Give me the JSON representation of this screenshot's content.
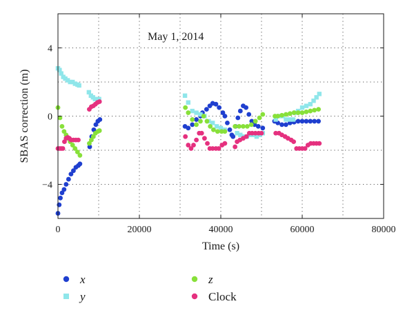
{
  "chart_data": {
    "type": "scatter",
    "title": "",
    "annotation": "May 1, 2014",
    "xlabel": "Time (s)",
    "ylabel": "SBAS correction (m)",
    "xlim": [
      0,
      80000
    ],
    "ylim": [
      -6,
      6
    ],
    "xticks": [
      0,
      20000,
      40000,
      60000,
      80000
    ],
    "yticks": [
      -4,
      0,
      4
    ],
    "grid": true,
    "legend_position": "bottom",
    "series": [
      {
        "name": "x",
        "color": "#1f3fcf",
        "marker": "circle",
        "points": [
          [
            0,
            -5.7
          ],
          [
            300,
            -5.2
          ],
          [
            600,
            -4.8
          ],
          [
            1000,
            -4.5
          ],
          [
            1500,
            -4.3
          ],
          [
            2000,
            -4.0
          ],
          [
            2600,
            -3.7
          ],
          [
            3200,
            -3.4
          ],
          [
            3800,
            -3.2
          ],
          [
            4400,
            -3.0
          ],
          [
            5000,
            -2.9
          ],
          [
            5400,
            -2.8
          ],
          [
            7800,
            -1.8
          ],
          [
            8300,
            -1.2
          ],
          [
            8800,
            -0.8
          ],
          [
            9300,
            -0.5
          ],
          [
            9800,
            -0.3
          ],
          [
            10300,
            -0.2
          ],
          [
            31200,
            -0.6
          ],
          [
            32000,
            -0.7
          ],
          [
            33000,
            -0.5
          ],
          [
            34000,
            -0.2
          ],
          [
            35000,
            0.0
          ],
          [
            35500,
            0.2
          ],
          [
            36500,
            0.4
          ],
          [
            37300,
            0.6
          ],
          [
            38000,
            0.75
          ],
          [
            38800,
            0.7
          ],
          [
            39600,
            0.5
          ],
          [
            40500,
            0.2
          ],
          [
            41000,
            0.0
          ],
          [
            41600,
            -0.4
          ],
          [
            42200,
            -0.8
          ],
          [
            42700,
            -1.1
          ],
          [
            43000,
            -1.2
          ],
          [
            43600,
            -0.6
          ],
          [
            44200,
            -0.1
          ],
          [
            44800,
            0.3
          ],
          [
            45500,
            0.6
          ],
          [
            46200,
            0.5
          ],
          [
            46900,
            0.1
          ],
          [
            47600,
            -0.3
          ],
          [
            48300,
            -0.5
          ],
          [
            49200,
            -0.6
          ],
          [
            50300,
            -0.7
          ],
          [
            53200,
            -0.3
          ],
          [
            54000,
            -0.4
          ],
          [
            55000,
            -0.5
          ],
          [
            56000,
            -0.5
          ],
          [
            57000,
            -0.4
          ],
          [
            58000,
            -0.35
          ],
          [
            59000,
            -0.3
          ],
          [
            60000,
            -0.3
          ],
          [
            61000,
            -0.3
          ],
          [
            62000,
            -0.3
          ],
          [
            63000,
            -0.3
          ],
          [
            64000,
            -0.3
          ]
        ]
      },
      {
        "name": "y",
        "color": "#8fe6ea",
        "marker": "square",
        "points": [
          [
            0,
            2.8
          ],
          [
            400,
            2.7
          ],
          [
            800,
            2.5
          ],
          [
            1300,
            2.3
          ],
          [
            1800,
            2.2
          ],
          [
            2400,
            2.1
          ],
          [
            3000,
            2.0
          ],
          [
            3600,
            2.0
          ],
          [
            4200,
            1.9
          ],
          [
            4800,
            1.85
          ],
          [
            5200,
            1.8
          ],
          [
            7600,
            1.4
          ],
          [
            8100,
            1.2
          ],
          [
            8600,
            1.1
          ],
          [
            9100,
            1.0
          ],
          [
            9600,
            1.0
          ],
          [
            10100,
            1.0
          ],
          [
            31200,
            1.2
          ],
          [
            32000,
            0.8
          ],
          [
            33000,
            0.3
          ],
          [
            34000,
            0.2
          ],
          [
            35000,
            0.1
          ],
          [
            36000,
            0.0
          ],
          [
            37000,
            -0.3
          ],
          [
            38000,
            -0.4
          ],
          [
            39000,
            -0.6
          ],
          [
            40000,
            -0.7
          ],
          [
            41000,
            -0.8
          ],
          [
            44000,
            -1.0
          ],
          [
            44800,
            -1.1
          ],
          [
            45600,
            -1.2
          ],
          [
            46400,
            -1.2
          ],
          [
            47200,
            -1.1
          ],
          [
            48000,
            -1.1
          ],
          [
            48800,
            -1.2
          ],
          [
            49600,
            -1.1
          ],
          [
            50300,
            -1.0
          ],
          [
            53500,
            -0.2
          ],
          [
            54300,
            0.0
          ],
          [
            55200,
            0.0
          ],
          [
            56000,
            -0.2
          ],
          [
            57000,
            -0.2
          ],
          [
            57800,
            -0.2
          ],
          [
            58200,
            0.2
          ],
          [
            59000,
            0.3
          ],
          [
            60000,
            0.5
          ],
          [
            61000,
            0.6
          ],
          [
            62000,
            0.7
          ],
          [
            62800,
            0.9
          ],
          [
            63500,
            1.1
          ],
          [
            64200,
            1.3
          ]
        ]
      },
      {
        "name": "z",
        "color": "#88e03a",
        "marker": "circle",
        "points": [
          [
            0,
            0.5
          ],
          [
            500,
            -0.1
          ],
          [
            1000,
            -0.6
          ],
          [
            1500,
            -0.9
          ],
          [
            2000,
            -1.1
          ],
          [
            2500,
            -1.3
          ],
          [
            3000,
            -1.5
          ],
          [
            3600,
            -1.7
          ],
          [
            4200,
            -1.9
          ],
          [
            4800,
            -2.1
          ],
          [
            5400,
            -2.3
          ],
          [
            7700,
            -1.6
          ],
          [
            8200,
            -1.4
          ],
          [
            8700,
            -1.2
          ],
          [
            9200,
            -1.0
          ],
          [
            9800,
            -0.9
          ],
          [
            10200,
            -0.85
          ],
          [
            31300,
            0.5
          ],
          [
            32000,
            0.2
          ],
          [
            33000,
            -0.2
          ],
          [
            34000,
            -0.5
          ],
          [
            35000,
            -0.3
          ],
          [
            35800,
            0.0
          ],
          [
            36600,
            -0.3
          ],
          [
            37400,
            -0.6
          ],
          [
            38200,
            -0.8
          ],
          [
            39200,
            -0.9
          ],
          [
            40200,
            -0.9
          ],
          [
            41000,
            -0.9
          ],
          [
            43500,
            -0.6
          ],
          [
            44500,
            -0.6
          ],
          [
            45500,
            -0.6
          ],
          [
            46500,
            -0.6
          ],
          [
            47500,
            -0.5
          ],
          [
            48500,
            -0.3
          ],
          [
            49500,
            -0.1
          ],
          [
            50300,
            0.1
          ],
          [
            53300,
            0.0
          ],
          [
            54000,
            0.0
          ],
          [
            55000,
            0.05
          ],
          [
            56000,
            0.1
          ],
          [
            57000,
            0.15
          ],
          [
            58000,
            0.2
          ],
          [
            59000,
            0.2
          ],
          [
            60000,
            0.2
          ],
          [
            61000,
            0.25
          ],
          [
            62000,
            0.3
          ],
          [
            63000,
            0.35
          ],
          [
            64000,
            0.4
          ]
        ]
      },
      {
        "name": "Clock",
        "color": "#e5317f",
        "marker": "circle",
        "points": [
          [
            0,
            -1.9
          ],
          [
            400,
            -1.9
          ],
          [
            800,
            -1.9
          ],
          [
            1200,
            -1.9
          ],
          [
            1600,
            -1.5
          ],
          [
            2000,
            -1.3
          ],
          [
            2400,
            -1.25
          ],
          [
            2800,
            -1.3
          ],
          [
            3200,
            -1.4
          ],
          [
            3800,
            -1.4
          ],
          [
            4400,
            -1.4
          ],
          [
            5000,
            -1.4
          ],
          [
            7700,
            0.4
          ],
          [
            8200,
            0.55
          ],
          [
            8700,
            0.6
          ],
          [
            9200,
            0.7
          ],
          [
            9700,
            0.8
          ],
          [
            10200,
            0.85
          ],
          [
            31300,
            -1.2
          ],
          [
            32000,
            -1.7
          ],
          [
            32700,
            -1.9
          ],
          [
            33300,
            -1.7
          ],
          [
            34000,
            -1.4
          ],
          [
            34700,
            -1.0
          ],
          [
            35300,
            -1.0
          ],
          [
            36000,
            -1.3
          ],
          [
            36700,
            -1.6
          ],
          [
            37300,
            -1.9
          ],
          [
            38000,
            -1.9
          ],
          [
            38800,
            -1.9
          ],
          [
            39500,
            -1.9
          ],
          [
            40300,
            -1.7
          ],
          [
            41000,
            -1.6
          ],
          [
            43500,
            -1.8
          ],
          [
            44000,
            -1.5
          ],
          [
            44700,
            -1.4
          ],
          [
            45500,
            -1.3
          ],
          [
            46300,
            -1.2
          ],
          [
            47000,
            -1.0
          ],
          [
            47700,
            -1.0
          ],
          [
            48500,
            -1.0
          ],
          [
            49300,
            -1.0
          ],
          [
            50000,
            -1.0
          ],
          [
            53500,
            -1.0
          ],
          [
            54300,
            -1.0
          ],
          [
            55000,
            -1.1
          ],
          [
            55800,
            -1.2
          ],
          [
            56500,
            -1.3
          ],
          [
            57300,
            -1.4
          ],
          [
            57900,
            -1.5
          ],
          [
            58600,
            -1.9
          ],
          [
            59300,
            -1.9
          ],
          [
            60000,
            -1.9
          ],
          [
            60700,
            -1.9
          ],
          [
            61400,
            -1.7
          ],
          [
            62100,
            -1.6
          ],
          [
            62800,
            -1.6
          ],
          [
            63500,
            -1.6
          ],
          [
            64200,
            -1.6
          ]
        ]
      }
    ]
  }
}
